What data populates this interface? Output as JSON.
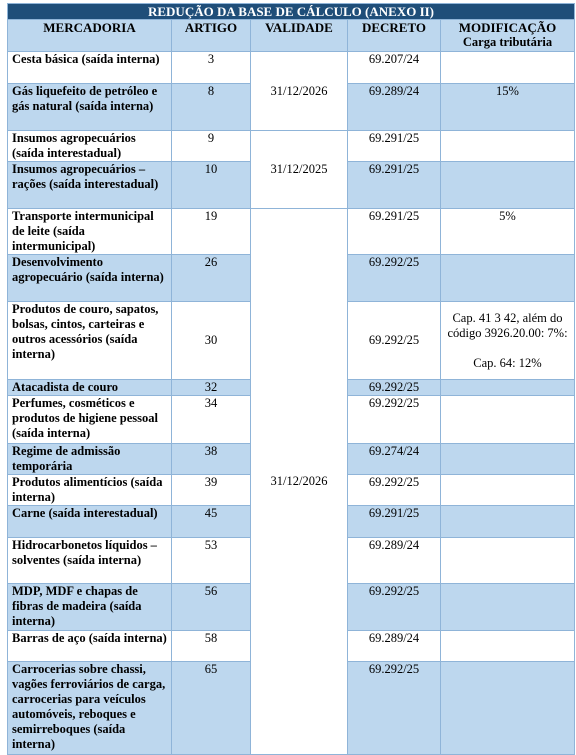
{
  "table": {
    "title": "REDUÇÃO DA BASE DE CÁLCULO (ANEXO II)",
    "columns": [
      "MERCADORIA",
      "ARTIGO",
      "VALIDADE",
      "DECRETO",
      "MODIFICAÇÃO"
    ],
    "column_subtitle": "Carga tributária",
    "rows": [
      {
        "mercadoria": "Cesta básica (saída interna)",
        "artigo": 3,
        "validade": "31/12/2026",
        "decreto": "69.207/24",
        "modificacao": []
      },
      {
        "mercadoria": "Gás liquefeito de petróleo e gás natural (saída interna)",
        "artigo": 8,
        "validade": null,
        "decreto": "69.289/24",
        "modificacao": [
          "15%"
        ]
      },
      {
        "mercadoria": "Insumos agropecuários (saída interestadual)",
        "artigo": 9,
        "validade": "31/12/2025",
        "decreto": "69.291/25",
        "modificacao": []
      },
      {
        "mercadoria": "Insumos agropecuários – rações (saída interestadual)",
        "artigo": 10,
        "validade": null,
        "decreto": "69.291/25",
        "modificacao": []
      },
      {
        "mercadoria": "Transporte intermunicipal de leite (saída intermunicipal)",
        "artigo": 19,
        "validade": "31/12/2026",
        "decreto": "69.291/25",
        "modificacao": [
          "5%"
        ]
      },
      {
        "mercadoria": "Desenvolvimento agropecuário (saída interna)",
        "artigo": 26,
        "validade": null,
        "decreto": "69.292/25",
        "modificacao": []
      },
      {
        "mercadoria": "Produtos de couro, sapatos, bolsas, cintos, carteiras e outros acessórios (saída interna)",
        "artigo": 30,
        "validade": null,
        "decreto": "69.292/25",
        "modificacao": [
          "Cap. 41 3 42, além do código 3926.20.00: 7%:",
          "Cap. 64: 12%"
        ]
      },
      {
        "mercadoria": "Atacadista de couro",
        "artigo": 32,
        "validade": null,
        "decreto": "69.292/25",
        "modificacao": []
      },
      {
        "mercadoria": "Perfumes, cosméticos e produtos de higiene pessoal (saída interna)",
        "artigo": 34,
        "validade": null,
        "decreto": "69.292/25",
        "modificacao": []
      },
      {
        "mercadoria": "Regime de admissão temporária",
        "artigo": 38,
        "validade": null,
        "decreto": "69.274/24",
        "modificacao": []
      },
      {
        "mercadoria": "Produtos alimentícios (saída interna)",
        "artigo": 39,
        "validade": null,
        "decreto": "69.292/25",
        "modificacao": []
      },
      {
        "mercadoria": "Carne (saída interestadual)",
        "artigo": 45,
        "validade": null,
        "decreto": "69.291/25",
        "modificacao": []
      },
      {
        "mercadoria": "Hidrocarbonetos líquidos – solventes (saída interna)",
        "artigo": 53,
        "validade": null,
        "decreto": "69.289/24",
        "modificacao": []
      },
      {
        "mercadoria": "MDP, MDF e chapas de fibras de madeira (saída interna)",
        "artigo": 56,
        "validade": null,
        "decreto": "69.292/25",
        "modificacao": []
      },
      {
        "mercadoria": "Barras de aço (saída interna)",
        "artigo": 58,
        "validade": null,
        "decreto": "69.289/24",
        "modificacao": []
      },
      {
        "mercadoria": "Carrocerias sobre chassi, vagões ferroviários de carga, carrocerias para veículos automóveis, reboques e semirreboques (saída interna)",
        "artigo": 65,
        "validade": null,
        "decreto": "69.292/25",
        "modificacao": []
      }
    ]
  }
}
